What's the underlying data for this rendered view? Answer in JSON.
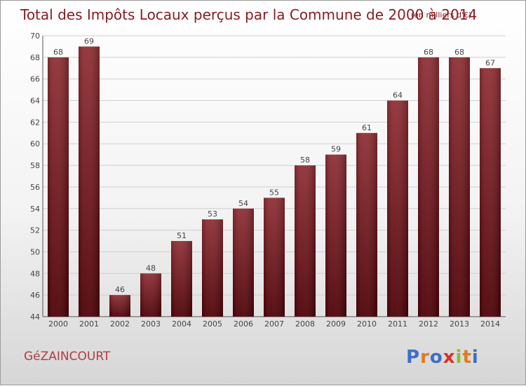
{
  "chart_data": {
    "type": "bar",
    "title": "Total des Impôts Locaux perçus par la Commune de 2000 à 2014",
    "unit": "(en milliers d'€)",
    "categories": [
      "2000",
      "2001",
      "2002",
      "2003",
      "2004",
      "2005",
      "2006",
      "2007",
      "2008",
      "2009",
      "2010",
      "2011",
      "2012",
      "2013",
      "2014"
    ],
    "values": [
      68,
      69,
      46,
      48,
      51,
      53,
      54,
      55,
      58,
      59,
      61,
      64,
      68,
      68,
      67
    ],
    "ylim": [
      44,
      70
    ],
    "yticks": [
      44,
      46,
      48,
      50,
      52,
      54,
      56,
      58,
      60,
      62,
      64,
      66,
      68,
      70
    ],
    "grid": true,
    "bar_color": "#8b1a1f"
  },
  "commune": "GéZAINCOURT",
  "logo": {
    "text": "Proxiti",
    "letter_colors": [
      "#3d6fc4",
      "#e07b1a",
      "#3d6fc4",
      "#d8302a",
      "#8cbf2a",
      "#e07b1a",
      "#3d6fc4"
    ]
  }
}
